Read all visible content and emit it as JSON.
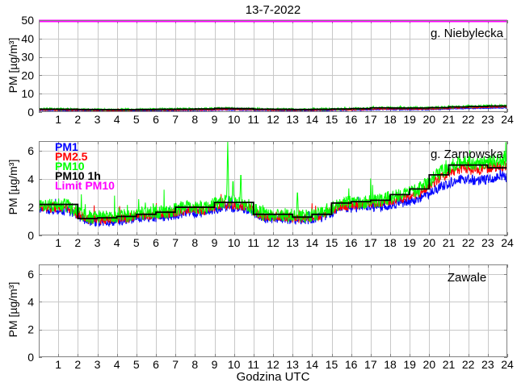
{
  "chart_data": {
    "type": "line",
    "title": "13-7-2022",
    "xlabel": "Godzina UTC",
    "x_range": [
      0,
      24
    ],
    "xticks": [
      1,
      2,
      3,
      4,
      5,
      6,
      7,
      8,
      9,
      10,
      11,
      12,
      13,
      14,
      15,
      16,
      17,
      18,
      19,
      20,
      21,
      22,
      23,
      24
    ],
    "grid": true,
    "legend_position": "top-left-of-middle-panel",
    "legend": [
      {
        "label": "PM1",
        "color": "#0000ff"
      },
      {
        "label": "PM2.5",
        "color": "#ff0000"
      },
      {
        "label": "PM10",
        "color": "#00ff00"
      },
      {
        "label": "PM10 1h",
        "color": "#000000"
      },
      {
        "label": "Limit PM10",
        "color": "#ff00ff"
      }
    ],
    "style": {
      "grid_color": "#c8c8c8",
      "frame_color": "#808080",
      "limit_color": "#ff00ff",
      "background": "#ffffff"
    },
    "panels": [
      {
        "station": "g. Niebylecka",
        "ylabel": "PM [µg/m³]",
        "ylim": [
          0,
          50
        ],
        "yticks": [
          0,
          10,
          20,
          30,
          40,
          50
        ],
        "limit_pm10": 50,
        "series": [
          {
            "name": "PM1",
            "color": "#0000ff",
            "noise": 0.3,
            "hourly": [
              0.9,
              0.8,
              0.7,
              0.7,
              0.7,
              0.7,
              0.8,
              0.9,
              0.9,
              1.2,
              1.1,
              0.9,
              0.8,
              0.8,
              0.8,
              1.0,
              1.1,
              1.4,
              1.3,
              1.3,
              1.5,
              1.9,
              2.1,
              2.3
            ],
            "spikes": []
          },
          {
            "name": "PM2.5",
            "color": "#ff0000",
            "noise": 0.35,
            "hourly": [
              1.2,
              1.1,
              1.0,
              0.9,
              0.9,
              1.0,
              1.1,
              1.2,
              1.2,
              1.5,
              1.4,
              1.2,
              1.1,
              1.0,
              1.1,
              1.3,
              1.4,
              1.8,
              1.7,
              1.7,
              1.9,
              2.3,
              2.5,
              2.8
            ],
            "spikes": []
          },
          {
            "name": "PM10",
            "color": "#00ff00",
            "noise": 0.5,
            "hourly": [
              1.8,
              1.6,
              1.5,
              1.4,
              1.4,
              1.5,
              1.6,
              1.7,
              1.8,
              2.2,
              2.0,
              1.7,
              1.6,
              1.5,
              1.6,
              1.8,
              2.0,
              2.5,
              2.3,
              2.3,
              2.5,
              3.0,
              3.2,
              3.5
            ],
            "spikes": []
          },
          {
            "name": "PM10 1h",
            "color": "#000000",
            "type": "step",
            "hourly": [
              1.6,
              1.5,
              1.4,
              1.3,
              1.3,
              1.4,
              1.5,
              1.6,
              1.7,
              2.0,
              1.9,
              1.6,
              1.5,
              1.4,
              1.5,
              1.7,
              1.9,
              2.3,
              2.2,
              2.2,
              2.4,
              2.8,
              3.0,
              3.3
            ]
          }
        ]
      },
      {
        "station": "g. Zarnowska",
        "ylabel": "PM [µg/m³]",
        "ylim": [
          0,
          6.7
        ],
        "yticks": [
          0,
          2,
          4,
          6
        ],
        "limit_pm10": 50,
        "series": [
          {
            "name": "PM1",
            "color": "#0000ff",
            "noise": 0.35,
            "hourly": [
              1.85,
              1.75,
              1.0,
              1.0,
              1.1,
              1.25,
              1.35,
              1.6,
              1.6,
              2.0,
              1.9,
              1.2,
              1.2,
              1.05,
              1.3,
              1.9,
              2.0,
              2.05,
              2.3,
              2.6,
              3.4,
              4.0,
              3.9,
              4.1
            ],
            "spikes": []
          },
          {
            "name": "PM2.5",
            "color": "#ff0000",
            "noise": 0.35,
            "hourly": [
              2.0,
              1.9,
              1.15,
              1.15,
              1.25,
              1.4,
              1.5,
              1.8,
              1.8,
              2.2,
              2.1,
              1.35,
              1.35,
              1.2,
              1.45,
              2.1,
              2.2,
              2.3,
              2.6,
              3.0,
              4.0,
              4.7,
              4.6,
              4.9
            ],
            "spikes": [
              {
                "x": 23.85,
                "v": 5.9
              }
            ]
          },
          {
            "name": "PM10",
            "color": "#00ff00",
            "noise": 0.5,
            "hourly": [
              2.2,
              2.1,
              1.3,
              1.3,
              1.4,
              1.6,
              1.7,
              2.0,
              2.0,
              2.4,
              2.3,
              1.5,
              1.5,
              1.35,
              1.6,
              2.3,
              2.4,
              2.5,
              2.9,
              3.3,
              4.4,
              5.2,
              5.1,
              5.3
            ],
            "spikes": [
              {
                "x": 9.68,
                "v": 6.7
              },
              {
                "x": 9.95,
                "v": 4.3
              },
              {
                "x": 10.35,
                "v": 4.8
              },
              {
                "x": 13.25,
                "v": 3.4
              },
              {
                "x": 23.85,
                "v": 6.7
              }
            ]
          },
          {
            "name": "PM10 1h",
            "color": "#000000",
            "type": "step",
            "hourly": [
              2.2,
              2.2,
              1.2,
              1.25,
              1.35,
              1.5,
              1.65,
              2.0,
              2.0,
              2.35,
              2.35,
              1.5,
              1.5,
              1.3,
              1.5,
              2.3,
              2.4,
              2.5,
              2.9,
              3.3,
              4.3,
              5.0,
              5.0,
              4.8
            ]
          }
        ]
      },
      {
        "station": "Zawale",
        "ylabel": "PM [µg/m³]",
        "ylim": [
          0,
          6.7
        ],
        "yticks": [
          0,
          2,
          4,
          6
        ],
        "limit_pm10": 50,
        "series": []
      }
    ]
  }
}
